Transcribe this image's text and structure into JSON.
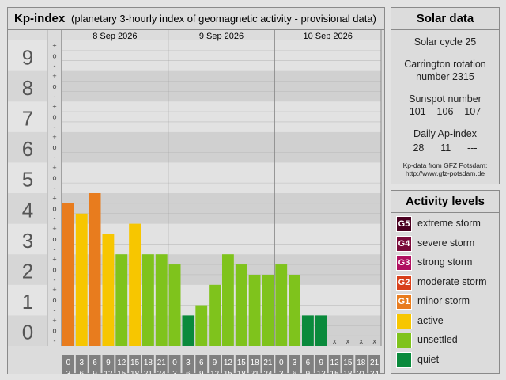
{
  "kp_panel": {
    "title": "Kp-index",
    "subtitle": "(planetary 3-hourly index of geomagnetic activity - provisional data)"
  },
  "chart_data": {
    "type": "bar",
    "title": "Kp-index",
    "subtitle": "(planetary 3-hourly index of geomagnetic activity - provisional data)",
    "ylim": [
      0,
      9
    ],
    "y_ticks": [
      "0",
      "1",
      "2",
      "3",
      "4",
      "5",
      "6",
      "7",
      "8",
      "9"
    ],
    "minor_ticks": [
      "-",
      "o",
      "+"
    ],
    "days": [
      "8 Sep 2026",
      "9 Sep 2026",
      "10 Sep 2026"
    ],
    "interval_start": [
      "0",
      "3",
      "6",
      "9",
      "12",
      "15",
      "18",
      "21"
    ],
    "interval_end": [
      "3",
      "6",
      "9",
      "12",
      "15",
      "18",
      "21",
      "24"
    ],
    "missing_label": "x",
    "values": [
      4.667,
      4.333,
      5.0,
      3.667,
      3.0,
      4.0,
      3.0,
      3.0,
      2.667,
      1.0,
      1.333,
      2.0,
      3.0,
      2.667,
      2.333,
      2.333,
      2.667,
      2.333,
      1.0,
      1.0,
      null,
      null,
      null,
      null
    ],
    "colors": [
      "#e87c1e",
      "#f7c600",
      "#e87c1e",
      "#f7c600",
      "#7fc31c",
      "#f7c600",
      "#7fc31c",
      "#7fc31c",
      "#7fc31c",
      "#0a8a3c",
      "#7fc31c",
      "#7fc31c",
      "#7fc31c",
      "#7fc31c",
      "#7fc31c",
      "#7fc31c",
      "#7fc31c",
      "#7fc31c",
      "#0a8a3c",
      "#0a8a3c",
      null,
      null,
      null,
      null
    ]
  },
  "solar": {
    "title": "Solar data",
    "cycle": "Solar cycle 25",
    "carrington_line1": "Carrington rotation",
    "carrington_line2": "number 2315",
    "sunspot_label": "Sunspot number",
    "sunspot_values": "101    106    107",
    "ap_label": "Daily Ap-index",
    "ap_values": "28      11      ---",
    "source_line1": "Kp-data from GFZ Potsdam:",
    "source_line2": "http://www.gfz-potsdam.de"
  },
  "levels": {
    "title": "Activity levels",
    "items": [
      {
        "code": "G5",
        "label": "extreme storm",
        "color": "#4a0020"
      },
      {
        "code": "G4",
        "label": "severe storm",
        "color": "#7a0a3a"
      },
      {
        "code": "G3",
        "label": "strong storm",
        "color": "#b01060"
      },
      {
        "code": "G2",
        "label": "moderate storm",
        "color": "#d8401a"
      },
      {
        "code": "G1",
        "label": "minor storm",
        "color": "#e87c1e"
      },
      {
        "code": "",
        "label": "active",
        "color": "#f7c600"
      },
      {
        "code": "",
        "label": "unsettled",
        "color": "#7fc31c"
      },
      {
        "code": "",
        "label": "quiet",
        "color": "#0a8a3c"
      }
    ]
  }
}
